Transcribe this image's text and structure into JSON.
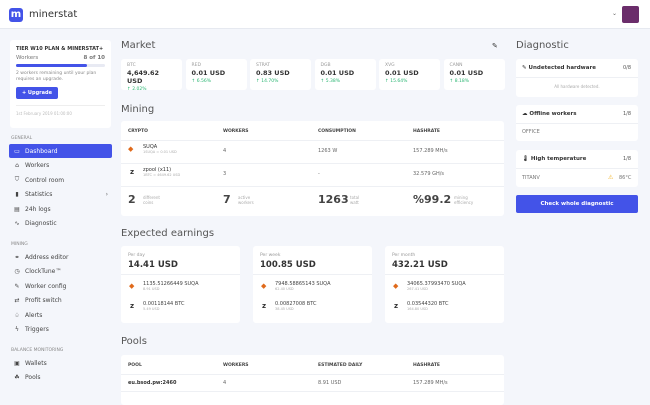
{
  "header": {
    "logo": "m",
    "app_name": "minerstat"
  },
  "plan": {
    "title": "TIER W10 PLAN & MINERSTAT+",
    "workers_label": "Workers",
    "workers_count": "8 of 10",
    "workers_fraction": 0.8,
    "note": "2 workers remaining until your plan requires an upgrade.",
    "upgrade": "+ Upgrade",
    "date": "1st February 2019 01:00:00"
  },
  "sidebar": {
    "general": "GENERAL",
    "mining": "MINING",
    "balance": "BALANCE MONITORING",
    "general_items": [
      {
        "label": "Dashboard",
        "icon": "monitor-icon",
        "g": "▭"
      },
      {
        "label": "Workers",
        "icon": "workers-icon",
        "g": "⌂"
      },
      {
        "label": "Control room",
        "icon": "shield-icon",
        "g": "⛉"
      },
      {
        "label": "Statistics",
        "icon": "bar-chart-icon",
        "g": "▮"
      },
      {
        "label": "24h logs",
        "icon": "log-icon",
        "g": "▤"
      },
      {
        "label": "Diagnostic",
        "icon": "pulse-icon",
        "g": "∿"
      }
    ],
    "mining_items": [
      {
        "label": "Address editor",
        "icon": "address-icon",
        "g": "⚭"
      },
      {
        "label": "ClockTune™",
        "icon": "gauge-icon",
        "g": "◷"
      },
      {
        "label": "Worker config",
        "icon": "wrench-icon",
        "g": "✎"
      },
      {
        "label": "Profit switch",
        "icon": "switch-icon",
        "g": "⇄"
      },
      {
        "label": "Alerts",
        "icon": "bell-icon",
        "g": "♤"
      },
      {
        "label": "Triggers",
        "icon": "trigger-icon",
        "g": "ϟ"
      }
    ],
    "balance_items": [
      {
        "label": "Wallets",
        "icon": "wallet-icon",
        "g": "▣"
      },
      {
        "label": "Pools",
        "icon": "pools-icon",
        "g": "☘"
      }
    ]
  },
  "market": {
    "title": "Market",
    "items": [
      {
        "sym": "BTC",
        "price": "4,649.62 USD",
        "change": "↑ 2.02%"
      },
      {
        "sym": "RED",
        "price": "0.01 USD",
        "change": "↑ 6.56%"
      },
      {
        "sym": "STRAT",
        "price": "0.83 USD",
        "change": "↑ 14.70%"
      },
      {
        "sym": "DGB",
        "price": "0.01 USD",
        "change": "↑ 5.38%"
      },
      {
        "sym": "XVG",
        "price": "0.01 USD",
        "change": "↑ 15.64%"
      },
      {
        "sym": "CANN",
        "price": "0.01 USD",
        "change": "↑ 8.18%"
      }
    ],
    "up_color": "#2bb673"
  },
  "mining": {
    "title": "Mining",
    "headers": [
      "CRYPTO",
      "WORKERS",
      "CONSUMPTION",
      "HASHRATE"
    ],
    "rows": [
      {
        "name": "SUQA",
        "sub": "1SUQA = 0.01 USD",
        "workers": "4",
        "consumption": "1263 W",
        "hashrate": "157.289 MH/s"
      },
      {
        "name": "zpool (x11)",
        "sub": "1BTC = 4649.62 USD",
        "workers": "3",
        "consumption": "-",
        "hashrate": "32.579 GH/s"
      }
    ],
    "summary": [
      {
        "v": "2",
        "l": "different coins"
      },
      {
        "v": "7",
        "l": "active workers"
      },
      {
        "v": "1263",
        "l": "total watt"
      },
      {
        "v": "%99.2",
        "l": "mining efficiency"
      }
    ]
  },
  "earnings": {
    "title": "Expected earnings",
    "cards": [
      {
        "period": "Per day",
        "usd": "14.41 USD",
        "suqa": "1135.51266449 SUQA",
        "suqa_usd": "8.91 USD",
        "btc": "0.00118144 BTC",
        "btc_usd": "5.49 USD"
      },
      {
        "period": "Per week",
        "usd": "100.85 USD",
        "suqa": "7948.58865143 SUQA",
        "suqa_usd": "62.40 USD",
        "btc": "0.00827008 BTC",
        "btc_usd": "38.45 USD"
      },
      {
        "period": "Per month",
        "usd": "432.21 USD",
        "suqa": "34065.37993470 SUQA",
        "suqa_usd": "267.41 USD",
        "btc": "0.03544320 BTC",
        "btc_usd": "164.80 USD"
      }
    ]
  },
  "pools": {
    "title": "Pools",
    "headers": [
      "POOL",
      "WORKERS",
      "ESTIMATED DAILY",
      "HASHRATE"
    ],
    "rows": [
      {
        "pool": "eu.bsod.pw:2460",
        "workers": "4",
        "daily": "8.91 USD",
        "hashrate": "157.289 MH/s"
      }
    ]
  },
  "diagnostic": {
    "title": "Diagnostic",
    "undetected": {
      "label": "Undetected hardware",
      "count": "0/8",
      "body": "All hardware detected."
    },
    "offline": {
      "label": "Offline workers",
      "count": "1/8",
      "body": "OFFICE"
    },
    "temp": {
      "label": "High temperature",
      "count": "1/8",
      "body": "TITANV",
      "value": "86°C"
    },
    "button": "Check whole diagnostic"
  }
}
